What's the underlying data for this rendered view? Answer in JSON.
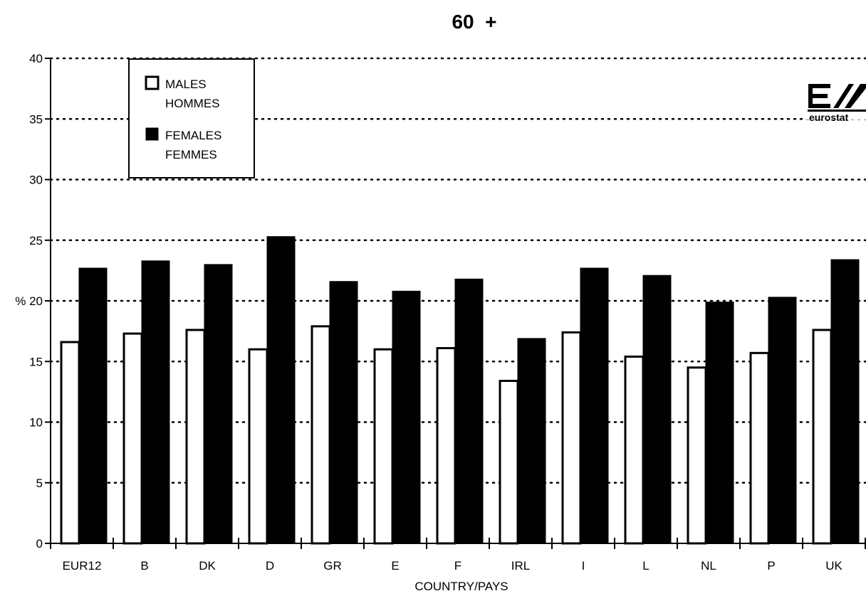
{
  "chart_data": {
    "type": "bar",
    "title": "60  +",
    "xlabel": "COUNTRY/PAYS",
    "ylabel": "%",
    "ylim": [
      0,
      40
    ],
    "yticks": [
      0,
      5,
      10,
      15,
      20,
      25,
      30,
      35,
      40
    ],
    "grid": true,
    "legend_position": "top-left",
    "categories": [
      "EUR12",
      "B",
      "DK",
      "D",
      "GR",
      "E",
      "F",
      "IRL",
      "I",
      "L",
      "NL",
      "P",
      "UK"
    ],
    "series": [
      {
        "name": "MALES HOMMES",
        "fill": "#ffffff",
        "values": [
          16.6,
          17.3,
          17.6,
          16.0,
          17.9,
          16.0,
          16.1,
          13.4,
          17.4,
          15.4,
          14.5,
          15.7,
          17.6
        ]
      },
      {
        "name": "FEMALES FEMMES",
        "fill": "#000000",
        "values": [
          22.7,
          23.3,
          23.0,
          25.3,
          21.6,
          20.8,
          21.8,
          16.9,
          22.7,
          22.1,
          19.9,
          20.3,
          23.4
        ]
      }
    ]
  },
  "legend": {
    "males_line1": "MALES",
    "males_line2": "HOMMES",
    "females_line1": "FEMALES",
    "females_line2": "FEMMES"
  },
  "logo": {
    "text": "eurostat"
  }
}
